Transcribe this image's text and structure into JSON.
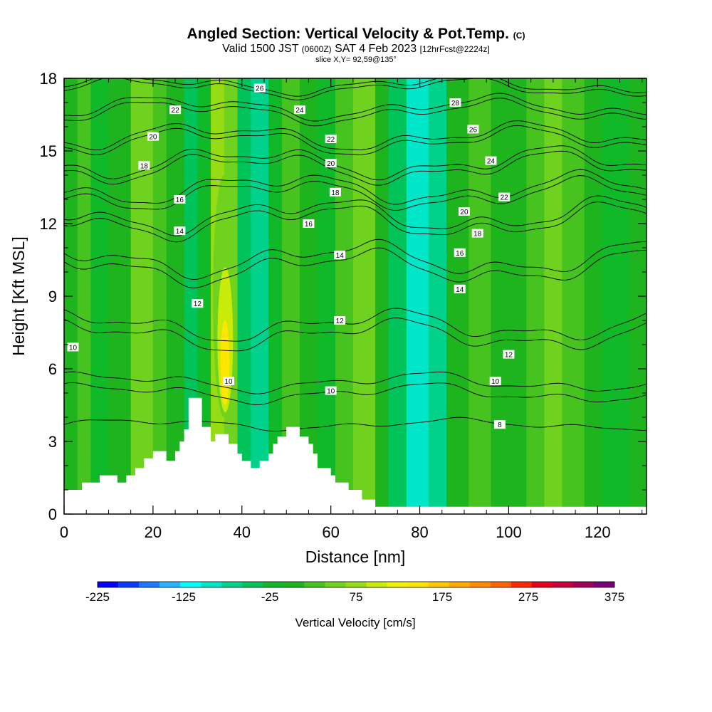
{
  "title": {
    "main": "Angled Section: Vertical Velocity & Pot.Temp.",
    "unit_tag": "(C)",
    "valid_prefix": "Valid 1500 JST",
    "valid_zulu": "(0600Z)",
    "valid_date": "SAT 4 Feb 2023",
    "forecast": "[12hrFcst@2224z]",
    "slice": "slice X,Y= 92,59@135°"
  },
  "chart_data": {
    "type": "heatmap",
    "xlabel": "Distance [nm]",
    "ylabel": "Height [Kft MSL]",
    "xlim": [
      0,
      131
    ],
    "ylim": [
      0,
      18
    ],
    "x_ticks": [
      0,
      20,
      40,
      60,
      80,
      100,
      120
    ],
    "y_ticks": [
      0,
      3,
      6,
      9,
      12,
      15,
      18
    ],
    "colorbar": {
      "label": "Vertical Velocity [cm/s]",
      "min": -225,
      "max": 375,
      "step": 25,
      "tick_labels": [
        "-225",
        "-125",
        "-25",
        "75",
        "175",
        "275",
        "375"
      ],
      "colors": [
        "#0000ff",
        "#0a3cff",
        "#1e78ff",
        "#28b4ff",
        "#00ffff",
        "#00e6c8",
        "#00d28c",
        "#00c35a",
        "#0fb928",
        "#1eb41e",
        "#46c31e",
        "#6ed21e",
        "#96dc14",
        "#c8eb0a",
        "#f0f000",
        "#ffe600",
        "#ffc800",
        "#ffaa00",
        "#ff8c00",
        "#ff6400",
        "#ff2800",
        "#e6001e",
        "#c8003c",
        "#a0005a",
        "#780078"
      ]
    },
    "velocity_bands": [
      {
        "x": 0,
        "w": 3,
        "v": 10
      },
      {
        "x": 3,
        "w": 3,
        "v": 30
      },
      {
        "x": 6,
        "w": 4,
        "v": -10
      },
      {
        "x": 10,
        "w": 5,
        "v": 10
      },
      {
        "x": 15,
        "w": 5,
        "v": 55
      },
      {
        "x": 20,
        "w": 3,
        "v": 30
      },
      {
        "x": 23,
        "w": 4,
        "v": 10
      },
      {
        "x": 27,
        "w": 3,
        "v": -35
      },
      {
        "x": 30,
        "w": 3,
        "v": -10
      },
      {
        "x": 33,
        "w": 3,
        "v": 80
      },
      {
        "x": 36,
        "w": 3,
        "v": 70
      },
      {
        "x": 39,
        "w": 3,
        "v": -40
      },
      {
        "x": 42,
        "w": 4,
        "v": -75
      },
      {
        "x": 46,
        "w": 3,
        "v": -20
      },
      {
        "x": 49,
        "w": 4,
        "v": 30
      },
      {
        "x": 53,
        "w": 4,
        "v": 10
      },
      {
        "x": 57,
        "w": 4,
        "v": -10
      },
      {
        "x": 61,
        "w": 4,
        "v": 30
      },
      {
        "x": 65,
        "w": 5,
        "v": 50
      },
      {
        "x": 70,
        "w": 3,
        "v": 5
      },
      {
        "x": 73,
        "w": 4,
        "v": -40
      },
      {
        "x": 77,
        "w": 5,
        "v": -90
      },
      {
        "x": 82,
        "w": 4,
        "v": -60
      },
      {
        "x": 86,
        "w": 5,
        "v": 5
      },
      {
        "x": 91,
        "w": 5,
        "v": 30
      },
      {
        "x": 96,
        "w": 4,
        "v": 10
      },
      {
        "x": 100,
        "w": 4,
        "v": 5
      },
      {
        "x": 104,
        "w": 4,
        "v": 30
      },
      {
        "x": 108,
        "w": 4,
        "v": 60
      },
      {
        "x": 112,
        "w": 5,
        "v": 30
      },
      {
        "x": 117,
        "w": 4,
        "v": 10
      },
      {
        "x": 121,
        "w": 6,
        "v": -15
      },
      {
        "x": 127,
        "w": 4,
        "v": 5
      }
    ],
    "updraft_core": [
      {
        "x": 33.5,
        "y": 4.0,
        "w": 5.0,
        "h": 10.0,
        "v": 70
      },
      {
        "x": 34.5,
        "y": 4.2,
        "w": 3.5,
        "h": 6.0,
        "v": 100
      },
      {
        "x": 35.2,
        "y": 4.5,
        "w": 2.0,
        "h": 3.5,
        "v": 150
      }
    ],
    "terrain_kft": [
      [
        0,
        1.0
      ],
      [
        4,
        1.0
      ],
      [
        4,
        1.3
      ],
      [
        8,
        1.3
      ],
      [
        8,
        1.6
      ],
      [
        12,
        1.6
      ],
      [
        12,
        1.3
      ],
      [
        14,
        1.3
      ],
      [
        14,
        1.6
      ],
      [
        16,
        1.6
      ],
      [
        16,
        1.9
      ],
      [
        18,
        1.9
      ],
      [
        18,
        2.3
      ],
      [
        20,
        2.3
      ],
      [
        20,
        2.6
      ],
      [
        23,
        2.6
      ],
      [
        23,
        2.2
      ],
      [
        25,
        2.2
      ],
      [
        25,
        2.6
      ],
      [
        26,
        2.6
      ],
      [
        26,
        3.0
      ],
      [
        27,
        3.0
      ],
      [
        27,
        3.5
      ],
      [
        28,
        3.5
      ],
      [
        28,
        4.8
      ],
      [
        31,
        4.8
      ],
      [
        31,
        3.6
      ],
      [
        33,
        3.6
      ],
      [
        33,
        3.0
      ],
      [
        34,
        3.0
      ],
      [
        34,
        3.3
      ],
      [
        37,
        3.3
      ],
      [
        37,
        2.9
      ],
      [
        39,
        2.9
      ],
      [
        39,
        2.5
      ],
      [
        40,
        2.5
      ],
      [
        40,
        2.2
      ],
      [
        42,
        2.2
      ],
      [
        42,
        1.9
      ],
      [
        44,
        1.9
      ],
      [
        44,
        2.2
      ],
      [
        46,
        2.2
      ],
      [
        46,
        2.5
      ],
      [
        47,
        2.5
      ],
      [
        47,
        2.9
      ],
      [
        48,
        2.9
      ],
      [
        48,
        3.2
      ],
      [
        50,
        3.2
      ],
      [
        50,
        3.6
      ],
      [
        53,
        3.6
      ],
      [
        53,
        3.2
      ],
      [
        55,
        3.2
      ],
      [
        55,
        2.9
      ],
      [
        56,
        2.9
      ],
      [
        56,
        2.5
      ],
      [
        57,
        2.5
      ],
      [
        57,
        1.9
      ],
      [
        60,
        1.9
      ],
      [
        60,
        1.6
      ],
      [
        61,
        1.6
      ],
      [
        61,
        1.3
      ],
      [
        64,
        1.3
      ],
      [
        64,
        1.0
      ],
      [
        67,
        1.0
      ],
      [
        67,
        0.6
      ],
      [
        70,
        0.6
      ],
      [
        70,
        0.3
      ],
      [
        131,
        0.3
      ]
    ],
    "theta_levels": [
      {
        "label": "8",
        "base": 3.7,
        "spacing": 0,
        "amp": 0.3
      },
      {
        "label": "10",
        "base": 5.0,
        "spacing": 0.45,
        "amp": 0.5
      },
      {
        "label": "12",
        "base": 7.4,
        "spacing": 0.4,
        "amp": 0.8
      },
      {
        "label": "14",
        "base": 10.2,
        "spacing": 0.35,
        "amp": 0.9
      },
      {
        "label": "16",
        "base": 12.1,
        "spacing": 0.25,
        "amp": 0.9
      },
      {
        "label": "18",
        "base": 13.2,
        "spacing": 0.25,
        "amp": 0.8
      },
      {
        "label": "20",
        "base": 14.3,
        "spacing": 0.22,
        "amp": 0.8
      },
      {
        "label": "22",
        "base": 15.4,
        "spacing": 0.2,
        "amp": 0.7
      },
      {
        "label": "24",
        "base": 16.6,
        "spacing": 0.2,
        "amp": 0.6
      },
      {
        "label": "26",
        "base": 17.6,
        "spacing": 0.15,
        "amp": 0.5
      }
    ],
    "contour_labels": [
      {
        "text": "26",
        "x": 44,
        "y": 17.6
      },
      {
        "text": "22",
        "x": 25,
        "y": 16.7
      },
      {
        "text": "24",
        "x": 53,
        "y": 16.7
      },
      {
        "text": "28",
        "x": 88,
        "y": 17.0
      },
      {
        "text": "26",
        "x": 92,
        "y": 15.9
      },
      {
        "text": "20",
        "x": 20,
        "y": 15.6
      },
      {
        "text": "22",
        "x": 60,
        "y": 15.5
      },
      {
        "text": "24",
        "x": 96,
        "y": 14.6
      },
      {
        "text": "18",
        "x": 18,
        "y": 14.4
      },
      {
        "text": "20",
        "x": 60,
        "y": 14.5
      },
      {
        "text": "18",
        "x": 61,
        "y": 13.3
      },
      {
        "text": "22",
        "x": 99,
        "y": 13.1
      },
      {
        "text": "16",
        "x": 26,
        "y": 13.0
      },
      {
        "text": "20",
        "x": 90,
        "y": 12.5
      },
      {
        "text": "16",
        "x": 55,
        "y": 12.0
      },
      {
        "text": "14",
        "x": 26,
        "y": 11.7
      },
      {
        "text": "18",
        "x": 93,
        "y": 11.6
      },
      {
        "text": "14",
        "x": 62,
        "y": 10.7
      },
      {
        "text": "16",
        "x": 89,
        "y": 10.8
      },
      {
        "text": "14",
        "x": 89,
        "y": 9.3
      },
      {
        "text": "12",
        "x": 30,
        "y": 8.7
      },
      {
        "text": "12",
        "x": 62,
        "y": 8.0
      },
      {
        "text": "10",
        "x": 2,
        "y": 6.9
      },
      {
        "text": "12",
        "x": 100,
        "y": 6.6
      },
      {
        "text": "10",
        "x": 37,
        "y": 5.5
      },
      {
        "text": "10",
        "x": 97,
        "y": 5.5
      },
      {
        "text": "10",
        "x": 60,
        "y": 5.1
      },
      {
        "text": "8",
        "x": 98,
        "y": 3.7
      }
    ]
  }
}
